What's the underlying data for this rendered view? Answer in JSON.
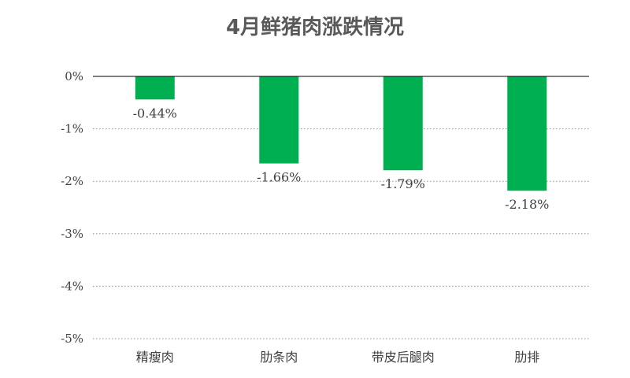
{
  "chart_data": {
    "type": "bar",
    "title": "4月鲜猪肉涨跌情况",
    "categories": [
      "精瘦肉",
      "肋条肉",
      "带皮后腿肉",
      "肋排"
    ],
    "values": [
      -0.44,
      -1.66,
      -1.79,
      -2.18
    ],
    "data_labels": [
      "-0.44%",
      "-1.66%",
      "-1.79%",
      "-2.18%"
    ],
    "ylim": [
      -5,
      0
    ],
    "yticks": [
      0,
      -1,
      -2,
      -3,
      -4,
      -5
    ],
    "ytick_labels": [
      "0%",
      "-1%",
      "-2%",
      "-3%",
      "-4%",
      "-5%"
    ],
    "xlabel": "",
    "ylabel": "",
    "grid": true,
    "grid_style": "dotted",
    "bar_color": "#00B050",
    "legend": "none"
  }
}
